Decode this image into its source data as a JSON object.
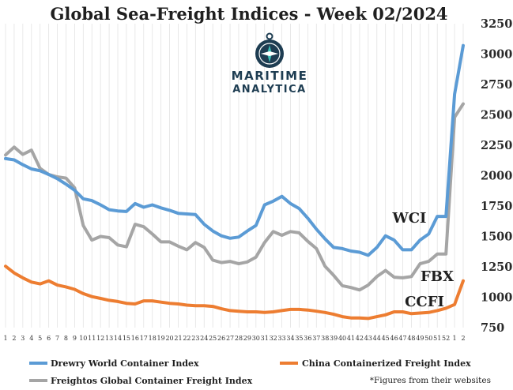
{
  "chart_data": {
    "type": "line",
    "title": "Global Sea-Freight Indices -  Week 02/2024",
    "categories": [
      "1",
      "2",
      "3",
      "4",
      "5",
      "6",
      "7",
      "8",
      "9",
      "10",
      "11",
      "12",
      "13",
      "14",
      "15",
      "16",
      "17",
      "18",
      "19",
      "20",
      "21",
      "22",
      "23",
      "24",
      "25",
      "26",
      "27",
      "28",
      "29",
      "30",
      "31",
      "32",
      "33",
      "34",
      "35",
      "36",
      "37",
      "38",
      "39",
      "40",
      "41",
      "42",
      "43",
      "44",
      "45",
      "46",
      "47",
      "48",
      "49",
      "50",
      "51",
      "52",
      "1",
      "2"
    ],
    "ylim": [
      750,
      3250
    ],
    "yticks": [
      750,
      1000,
      1250,
      1500,
      1750,
      2000,
      2250,
      2500,
      2750,
      3000,
      3250
    ],
    "grid": "vertical",
    "series": [
      {
        "name": "Drewry World Container Index",
        "color": "#5b9bd5",
        "values": [
          2140,
          2130,
          2090,
          2055,
          2040,
          2010,
          1975,
          1930,
          1880,
          1810,
          1795,
          1760,
          1720,
          1710,
          1705,
          1770,
          1740,
          1760,
          1735,
          1715,
          1690,
          1685,
          1680,
          1600,
          1545,
          1505,
          1485,
          1495,
          1545,
          1590,
          1760,
          1790,
          1830,
          1770,
          1730,
          1650,
          1560,
          1480,
          1410,
          1400,
          1380,
          1370,
          1345,
          1410,
          1505,
          1470,
          1390,
          1390,
          1470,
          1520,
          1665,
          1665,
          2670,
          3070
        ]
      },
      {
        "name": "China Containerized Freight Index",
        "color": "#ed7d31",
        "values": [
          1255,
          1200,
          1160,
          1125,
          1110,
          1135,
          1100,
          1085,
          1065,
          1030,
          1005,
          990,
          975,
          965,
          950,
          945,
          970,
          970,
          960,
          950,
          945,
          935,
          930,
          930,
          925,
          905,
          890,
          885,
          880,
          880,
          875,
          880,
          890,
          900,
          900,
          895,
          885,
          875,
          860,
          840,
          830,
          830,
          825,
          840,
          855,
          880,
          880,
          865,
          870,
          875,
          890,
          910,
          940,
          1135
        ]
      },
      {
        "name": "Freightos Global Container Freight Index",
        "color": "#a5a5a5",
        "values": [
          2170,
          2235,
          2175,
          2210,
          2060,
          2010,
          1990,
          1980,
          1900,
          1590,
          1470,
          1500,
          1490,
          1430,
          1415,
          1600,
          1580,
          1520,
          1455,
          1455,
          1420,
          1390,
          1450,
          1410,
          1305,
          1285,
          1295,
          1275,
          1290,
          1330,
          1450,
          1540,
          1510,
          1540,
          1530,
          1460,
          1400,
          1255,
          1180,
          1095,
          1080,
          1060,
          1100,
          1170,
          1220,
          1165,
          1160,
          1170,
          1275,
          1295,
          1355,
          1355,
          2480,
          2590
        ]
      }
    ],
    "annotations": [
      "WCI",
      "FBX",
      "CCFI"
    ],
    "legend_position": "bottom",
    "note": "*Figures from their websites"
  },
  "logo": {
    "line1": "MARITIME",
    "line2": "ANALYTICA",
    "icon": "compass-icon"
  }
}
